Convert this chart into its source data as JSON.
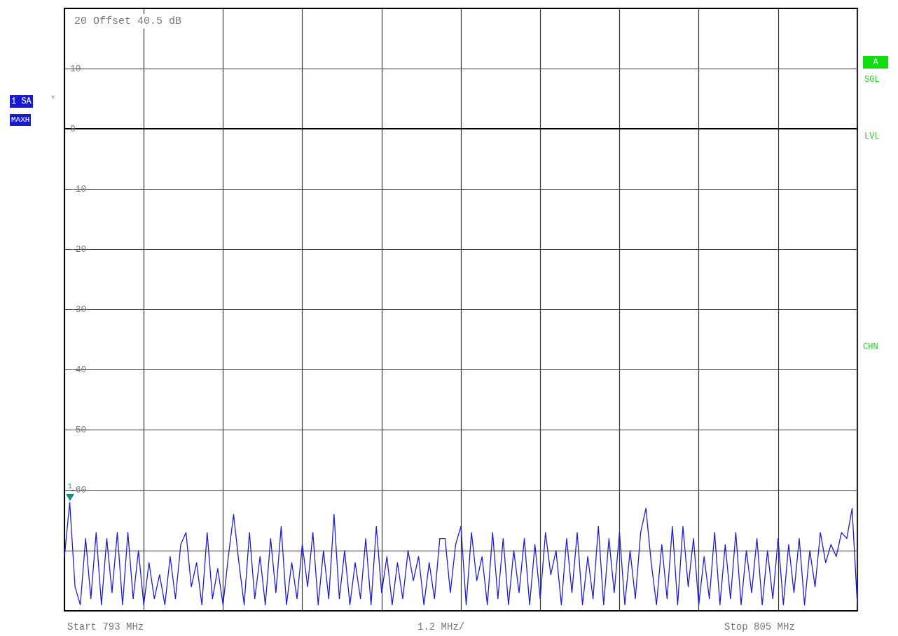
{
  "chart_data": {
    "type": "line",
    "annotations": [
      "20 Offset 40.5 dB",
      "1 SA",
      "*",
      "MAXH",
      "A",
      "SGL",
      "LVL",
      "CHN",
      "Start 793 MHz",
      "1.2 MHz/",
      "Stop 805 MHz",
      {
        "text": "1",
        "y": -62
      }
    ],
    "categories": [
      null,
      null,
      null,
      null,
      null,
      null,
      null,
      null,
      null,
      null,
      null,
      null,
      null,
      null,
      null,
      null,
      null,
      null,
      null,
      null,
      null,
      null,
      null,
      null,
      null,
      null,
      null,
      null,
      null,
      null,
      null,
      null,
      null,
      null,
      null,
      null,
      null,
      null,
      null,
      null,
      null,
      null,
      null,
      null,
      null,
      null,
      null,
      null,
      null,
      null,
      null,
      null,
      null,
      null,
      null,
      null,
      null,
      null,
      null,
      null,
      null,
      null,
      null,
      null,
      null,
      null,
      null,
      null,
      null,
      null,
      null,
      null,
      null,
      null,
      null,
      null,
      null,
      null,
      null,
      null,
      null,
      null,
      null,
      null,
      null,
      null,
      null,
      null,
      null,
      null,
      null,
      null,
      null,
      null,
      null,
      null,
      null,
      null,
      null,
      null,
      null,
      null,
      null,
      null,
      null,
      null,
      null,
      null,
      null,
      null,
      null,
      null,
      null,
      null,
      null,
      null,
      null,
      null,
      null,
      null,
      null,
      null,
      null,
      null,
      null,
      null,
      null,
      null,
      null,
      null,
      null,
      null,
      null,
      null,
      null,
      null,
      null,
      null,
      null,
      null,
      null,
      null,
      null,
      null,
      null,
      null,
      null,
      null,
      null,
      null,
      null
    ],
    "series": [
      {
        "color": "#1c1cd8",
        "values": [
          -71,
          -62,
          -76,
          -79,
          -68,
          -78,
          -67,
          -79,
          -68,
          -77,
          -67,
          -79,
          -67,
          -78,
          -70,
          -79,
          -72,
          -78,
          -74,
          -79,
          -71,
          -78,
          -69,
          -67,
          -76,
          -72,
          -79,
          -67,
          -78,
          -73,
          -79,
          -71,
          -64,
          -72,
          -79,
          -67,
          -78,
          -71,
          -79,
          -68,
          -77,
          -66,
          -79,
          -72,
          -78,
          -69,
          -76,
          -67,
          -79,
          -70,
          -78,
          -64,
          -78,
          -70,
          -79,
          -72,
          -78,
          -68,
          -79,
          -66,
          -77,
          -71,
          -79,
          -72,
          -78,
          -70,
          -75,
          -71,
          -79,
          -72,
          -78,
          -68,
          -68,
          -77,
          -69,
          -66,
          -79,
          -67,
          -75,
          -71,
          -79,
          -67,
          -78,
          -68,
          -79,
          -70,
          -77,
          -68,
          -79,
          -69,
          -78,
          -67,
          -74,
          -70,
          -79,
          -68,
          -77,
          -67,
          -79,
          -71,
          -78,
          -66,
          -79,
          -68,
          -77,
          -67,
          -79,
          -70,
          -78,
          -67,
          -63,
          -72,
          -79,
          -69,
          -78,
          -66,
          -79,
          -66,
          -76,
          -68,
          -79,
          -71,
          -78,
          -67,
          -79,
          -69,
          -78,
          -67,
          -79,
          -70,
          -77,
          -68,
          -79,
          -70,
          -78,
          -68,
          -79,
          -69,
          -77,
          -68,
          -79,
          -70,
          -76,
          -67,
          -72,
          -69,
          -71,
          -67,
          -68,
          -63,
          -79
        ]
      }
    ],
    "ylim": [
      -80,
      20
    ],
    "yticks": [
      10,
      0,
      -10,
      -20,
      -30,
      -40,
      -50,
      -60,
      {
        "value": -70,
        "label": null
      }
    ],
    "grid": true,
    "marker": "none",
    "line_style": "solid",
    "tick_labels": "y"
  }
}
